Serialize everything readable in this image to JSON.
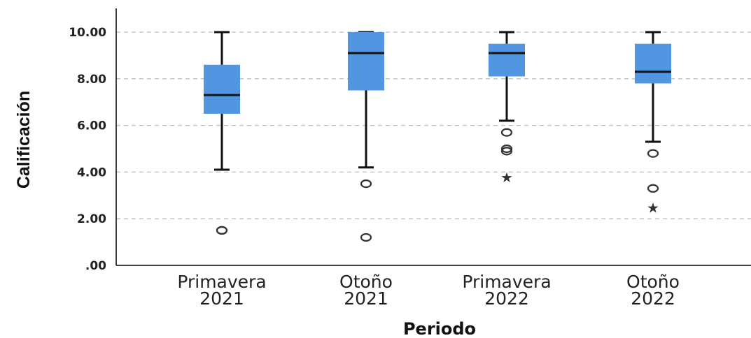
{
  "chart_data": {
    "type": "boxplot",
    "xlabel": "Periodo",
    "ylabel": "Calificación",
    "ylim": [
      0,
      10
    ],
    "yticks": [
      {
        "value": 0,
        "label": ".00"
      },
      {
        "value": 2,
        "label": "2.00"
      },
      {
        "value": 4,
        "label": "4.00"
      },
      {
        "value": 6,
        "label": "6.00"
      },
      {
        "value": 8,
        "label": "8.00"
      },
      {
        "value": 10,
        "label": "10.00"
      }
    ],
    "grid": true,
    "box_color": "#5296e2",
    "categories": [
      {
        "label_line1": "Primavera",
        "label_line2": "2021",
        "min": 4.1,
        "q1": 6.5,
        "median": 7.3,
        "q3": 8.6,
        "max": 10.0,
        "outliers": [
          1.5,
          1.5
        ],
        "extremes": []
      },
      {
        "label_line1": "Otoño",
        "label_line2": "2021",
        "min": 4.2,
        "q1": 7.5,
        "median": 9.1,
        "q3": 10.0,
        "max": 10.0,
        "outliers": [
          3.5,
          1.2
        ],
        "extremes": []
      },
      {
        "label_line1": "Primavera",
        "label_line2": "2022",
        "min": 6.2,
        "q1": 8.1,
        "median": 9.1,
        "q3": 9.5,
        "max": 10.0,
        "outliers": [
          5.7,
          5.0,
          4.9
        ],
        "extremes": [
          3.8
        ]
      },
      {
        "label_line1": "Otoño",
        "label_line2": "2022",
        "min": 5.3,
        "q1": 7.8,
        "median": 8.3,
        "q3": 9.5,
        "max": 10.0,
        "outliers": [
          4.8,
          3.3
        ],
        "extremes": [
          2.5
        ]
      }
    ]
  }
}
